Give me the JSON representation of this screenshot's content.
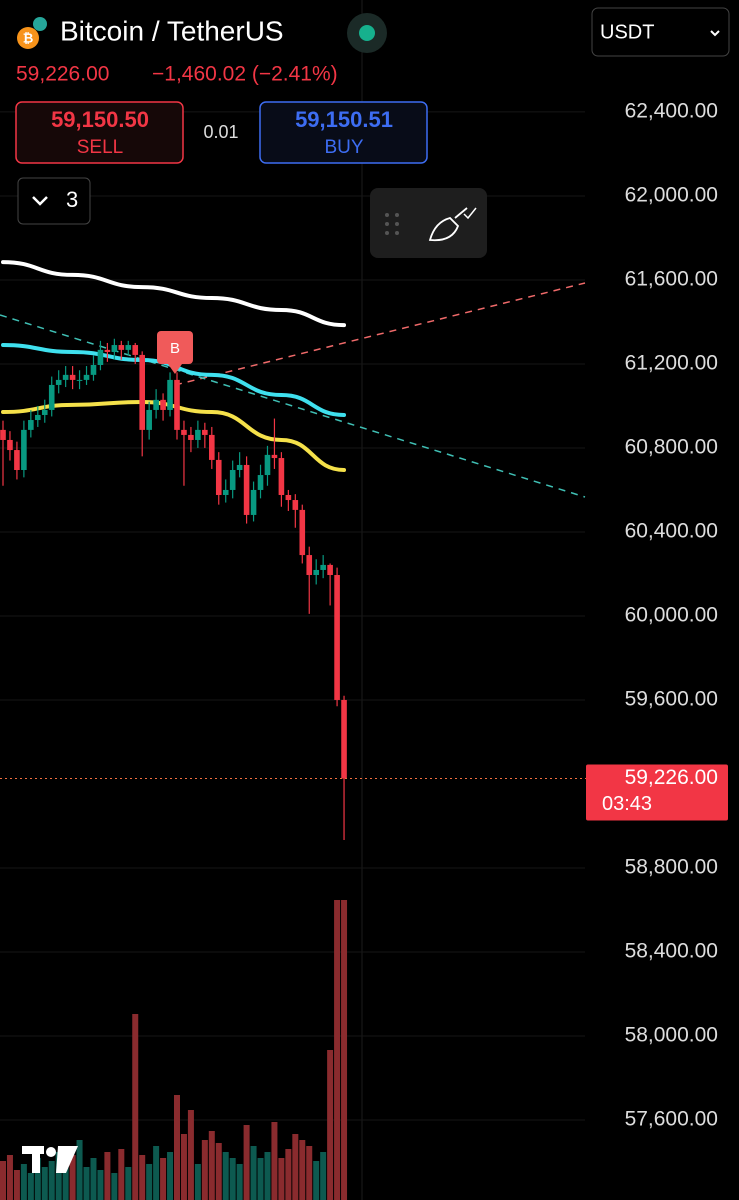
{
  "chart_data": {
    "type": "candlestick",
    "title": "Bitcoin / TetherUS",
    "last_price": "59,226.00",
    "change": "−1,460.02 (−2.41%)",
    "sell_price": "59,150.50",
    "sell_label": "SELL",
    "spread": "0.01",
    "buy_price": "59,150.51",
    "buy_label": "BUY",
    "currency": "USDT",
    "indicator_count": "3",
    "signal_label": "B",
    "price_label": "59,226.00",
    "countdown": "03:43",
    "up_color": "#089981",
    "down_color": "#f23645",
    "x": [
      0,
      1,
      2,
      3,
      4,
      5,
      6,
      7,
      8,
      9,
      10,
      11,
      12,
      13,
      14,
      15,
      16,
      17,
      18,
      19,
      20,
      21,
      22,
      23,
      24,
      25,
      26,
      27,
      28,
      29,
      30,
      31,
      32,
      33,
      34,
      35,
      36,
      37,
      38,
      39,
      40,
      41,
      42,
      43,
      44,
      45,
      46,
      47,
      48,
      49
    ],
    "open": [
      60886,
      60838,
      60790,
      60695,
      60886,
      60933,
      60957,
      60981,
      61100,
      61124,
      61148,
      61124,
      61124,
      61148,
      61195,
      61267,
      61257,
      61290,
      61267,
      61290,
      61243,
      60886,
      60981,
      61029,
      60981,
      61124,
      60886,
      60862,
      60838,
      60886,
      60862,
      60743,
      60576,
      60600,
      60695,
      60719,
      60481,
      60600,
      60671,
      60767,
      60752,
      60576,
      60552,
      60505,
      60290,
      60195,
      60219,
      60243,
      60195,
      59600
    ],
    "high": [
      60930,
      60880,
      60830,
      60930,
      60980,
      61000,
      61030,
      61140,
      61170,
      61190,
      61190,
      61170,
      61190,
      61240,
      61310,
      61300,
      61320,
      61310,
      61310,
      61300,
      61260,
      61020,
      61080,
      61060,
      61160,
      61160,
      60930,
      60900,
      60930,
      60920,
      60900,
      60780,
      60650,
      60740,
      60780,
      60760,
      60640,
      60720,
      60810,
      60940,
      60780,
      60600,
      60580,
      60530,
      60330,
      60270,
      60290,
      60250,
      60230,
      59620
    ],
    "low": [
      60620,
      60740,
      60650,
      60660,
      60850,
      60900,
      60920,
      60950,
      61060,
      61090,
      61080,
      61080,
      61100,
      61120,
      61170,
      61210,
      61220,
      61220,
      61240,
      61200,
      60760,
      60840,
      60940,
      60930,
      60950,
      60840,
      60620,
      60780,
      60800,
      60800,
      60700,
      60530,
      60540,
      60560,
      60660,
      60440,
      60450,
      60560,
      60620,
      60700,
      60520,
      60500,
      60420,
      60250,
      60010,
      60150,
      60180,
      60050,
      59570,
      58933
    ],
    "close": [
      60838,
      60790,
      60695,
      60886,
      60933,
      60957,
      60981,
      61100,
      61124,
      61148,
      61124,
      61124,
      61148,
      61195,
      61267,
      61257,
      61290,
      61267,
      61290,
      61243,
      60886,
      60981,
      61029,
      60981,
      61124,
      60886,
      60862,
      60838,
      60886,
      60862,
      60743,
      60576,
      60600,
      60695,
      60719,
      60481,
      60600,
      60671,
      60767,
      60752,
      60576,
      60552,
      60505,
      60290,
      60195,
      60219,
      60243,
      60195,
      59600,
      59226
    ],
    "volume": [
      13,
      15,
      10,
      12,
      9,
      14,
      11,
      13,
      16,
      12,
      15,
      20,
      11,
      14,
      10,
      16,
      9,
      17,
      11,
      62,
      15,
      12,
      18,
      14,
      16,
      35,
      22,
      30,
      12,
      20,
      23,
      19,
      16,
      14,
      12,
      25,
      18,
      14,
      16,
      26,
      14,
      17,
      22,
      20,
      18,
      13,
      16,
      50,
      100,
      100
    ],
    "y2lim": [
      0,
      100
    ],
    "series": [
      {
        "color": "#ffffff",
        "x": [
          0,
          10,
          20,
          30,
          40,
          49
        ],
        "values": [
          61685,
          61624,
          61566,
          61514,
          61457,
          61385
        ]
      },
      {
        "color": "#3fe0ee",
        "x": [
          0,
          10,
          20,
          30,
          40,
          49
        ],
        "values": [
          61290,
          61257,
          61219,
          61148,
          61052,
          60957
        ]
      },
      {
        "color": "#f5e14a",
        "x": [
          0,
          10,
          20,
          30,
          40,
          49
        ],
        "values": [
          60971,
          61005,
          61019,
          60971,
          60838,
          60695
        ]
      }
    ],
    "ylim": [
      57219,
      62933
    ],
    "yticks": [
      {
        "value": 62400,
        "label": "62,400.00"
      },
      {
        "value": 62000,
        "label": "62,000.00"
      },
      {
        "value": 61600,
        "label": "61,600.00"
      },
      {
        "value": 61200,
        "label": "61,200.00"
      },
      {
        "value": 60800,
        "label": "60,800.00"
      },
      {
        "value": 60400,
        "label": "60,400.00"
      },
      {
        "value": 60000,
        "label": "60,000.00"
      },
      {
        "value": 59600,
        "label": "59,600.00"
      },
      {
        "value": 58800,
        "label": "58,800.00"
      },
      {
        "value": 58400,
        "label": "58,400.00"
      },
      {
        "value": 58000,
        "label": "58,000.00"
      },
      {
        "value": 57600,
        "label": "57,600.00"
      }
    ],
    "grid": true
  }
}
